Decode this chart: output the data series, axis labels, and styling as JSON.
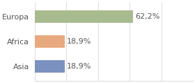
{
  "categories": [
    "Europa",
    "Africa",
    "Asia"
  ],
  "values": [
    62.2,
    18.9,
    18.9
  ],
  "labels": [
    "62,2%",
    "18,9%",
    "18,9%"
  ],
  "bar_colors": [
    "#a8bb8e",
    "#e8a97e",
    "#7b91c0"
  ],
  "background_color": "#ffffff",
  "xlim": [
    0,
    100
  ],
  "bar_height": 0.5,
  "label_fontsize": 8,
  "tick_fontsize": 8,
  "grid_color": "#dddddd",
  "grid_linewidth": 0.7
}
